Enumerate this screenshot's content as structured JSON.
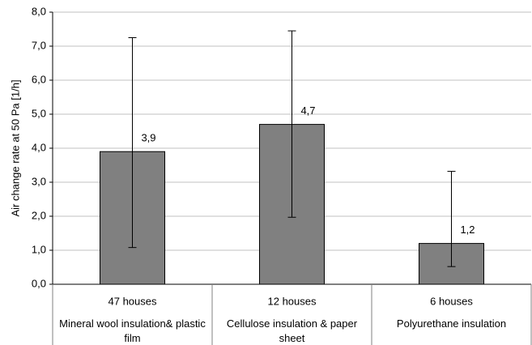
{
  "chart_data": {
    "type": "bar",
    "y_label": "Air change rate at 50 Pa [1/h]",
    "categories": [
      "47 houses",
      "12 houses",
      "6 houses"
    ],
    "category_groups": [
      "Mineral wool insulation& plastic film",
      "Cellulose insulation & paper sheet",
      "Polyurethane insulation"
    ],
    "values": [
      3.9,
      4.7,
      1.2
    ],
    "value_labels": [
      "3,9",
      "4,7",
      "1,2"
    ],
    "error_low": [
      1.08,
      1.97,
      0.52
    ],
    "error_high": [
      7.25,
      7.45,
      3.32
    ],
    "color": "#808080",
    "ylim": [
      0,
      8
    ],
    "yticks": [
      {
        "value": 0,
        "label": "0,0"
      },
      {
        "value": 1,
        "label": "1,0"
      },
      {
        "value": 2,
        "label": "2,0"
      },
      {
        "value": 3,
        "label": "3,0"
      },
      {
        "value": 4,
        "label": "4,0"
      },
      {
        "value": 5,
        "label": "5,0"
      },
      {
        "value": 6,
        "label": "6,0"
      },
      {
        "value": 7,
        "label": "7,0"
      },
      {
        "value": 8,
        "label": "8,0"
      }
    ],
    "grid": true
  }
}
